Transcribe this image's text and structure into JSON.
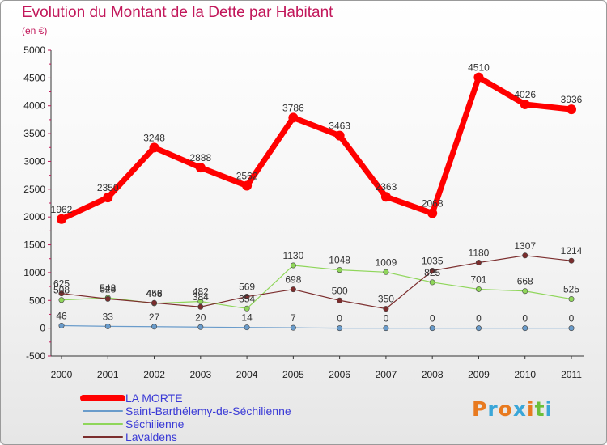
{
  "header": {
    "title": "Evolution du Montant de la Dette par Habitant",
    "subtitle": "(en €)"
  },
  "logo": {
    "text": "Proxiti",
    "colors": [
      "#e87a1f",
      "#3aa6d8",
      "#e87a1f",
      "#3aa6d8",
      "#e87a1f",
      "#6bbf3a",
      "#3aa6d8"
    ]
  },
  "chart_data": {
    "type": "line",
    "title": "Evolution du Montant de la Dette par Habitant",
    "subtitle": "(en €)",
    "x": [
      "2000",
      "2001",
      "2002",
      "2003",
      "2004",
      "2005",
      "2006",
      "2007",
      "2008",
      "2009",
      "2010",
      "2011"
    ],
    "ylim": [
      -500,
      5000
    ],
    "yticks": [
      -500,
      0,
      500,
      1000,
      1500,
      2000,
      2500,
      3000,
      3500,
      4000,
      4500,
      5000
    ],
    "grid": false,
    "legend": "bottom-left",
    "series": [
      {
        "name": "LA MORTE",
        "color": "#ff0000",
        "width": 7,
        "marker": 6,
        "values": [
          1962,
          2350,
          3248,
          2888,
          2562,
          3786,
          3463,
          2363,
          2068,
          4510,
          4026,
          3936
        ]
      },
      {
        "name": "Saint-Barthélemy-de-Séchilienne",
        "color": "#6a9ccb",
        "width": 1.2,
        "marker": 3.2,
        "values": [
          46,
          33,
          27,
          20,
          14,
          7,
          0,
          0,
          0,
          0,
          0,
          0
        ]
      },
      {
        "name": "Séchilienne",
        "color": "#8fd65a",
        "width": 1.2,
        "marker": 3.2,
        "values": [
          508,
          548,
          448,
          482,
          354,
          1130,
          1048,
          1009,
          825,
          701,
          668,
          525
        ]
      },
      {
        "name": "Lavaldens",
        "color": "#7b2d2d",
        "width": 1.2,
        "marker": 3.2,
        "values": [
          625,
          528,
          456,
          384,
          569,
          698,
          500,
          350,
          1035,
          1180,
          1307,
          1214
        ]
      }
    ]
  }
}
